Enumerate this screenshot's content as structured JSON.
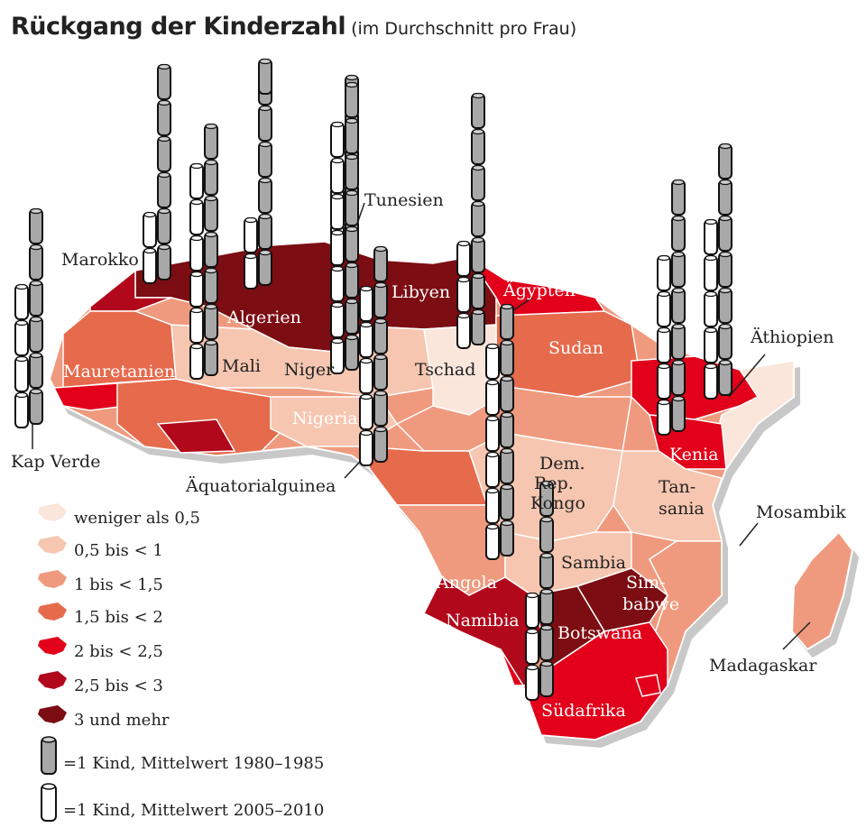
{
  "title": "Rückgang der Kinderzahl",
  "subtitle": "(im Durchschnitt pro Frau)",
  "colors": {
    "background": "#ffffff",
    "sea_shadow": "#c8c8c8",
    "border": "#ffffff",
    "label_dark": "#222222",
    "label_light": "#ffffff",
    "cylinder_old": "#a8a8a8",
    "cylinder_new": "#ffffff",
    "cylinder_outline": "#111111"
  },
  "legend": {
    "categories": [
      {
        "label": "weniger als 0,5",
        "color": "#fbe6dc"
      },
      {
        "label": "0,5 bis < 1",
        "color": "#f6c6b0"
      },
      {
        "label": "1 bis < 1,5",
        "color": "#ef9a7e"
      },
      {
        "label": "1,5 bis < 2",
        "color": "#e66a4c"
      },
      {
        "label": "2 bis < 2,5",
        "color": "#e2001a"
      },
      {
        "label": "2,5 bis < 3",
        "color": "#b2081c"
      },
      {
        "label": "3 und mehr",
        "color": "#7c0d13"
      }
    ],
    "symbols": [
      {
        "label": "=1 Kind, Mittelwert 1980–1985",
        "icon": "grey-cylinder-icon"
      },
      {
        "label": "=1 Kind, Mittelwert 2005–2010",
        "icon": "white-cylinder-icon"
      }
    ]
  },
  "countries": [
    {
      "name": "Marokko",
      "label_color": "dark",
      "old_children": 6,
      "new_children": 2
    },
    {
      "name": "Algerien",
      "label_color": "light",
      "old_children": 7,
      "new_children": 2
    },
    {
      "name": "Tunesien",
      "label_color": "dark",
      "old_children": 5,
      "new_children": 2
    },
    {
      "name": "Libyen",
      "label_color": "light",
      "old_children": 7,
      "new_children": 3
    },
    {
      "name": "Ägypten",
      "label_color": "light",
      "old_children": 5,
      "new_children": 3
    },
    {
      "name": "Mauretanien",
      "label_color": "light",
      "old_children": 6,
      "new_children": 4
    },
    {
      "name": "Mali",
      "label_color": "dark",
      "old_children": 7,
      "new_children": 6
    },
    {
      "name": "Niger",
      "label_color": "dark",
      "old_children": 8,
      "new_children": 7
    },
    {
      "name": "Tschad",
      "label_color": "dark",
      "old_children": 7,
      "new_children": 6
    },
    {
      "name": "Sudan",
      "label_color": "light",
      "old_children": 6,
      "new_children": 4
    },
    {
      "name": "Äthiopien",
      "label_color": "dark",
      "old_children": 7,
      "new_children": 5
    },
    {
      "name": "Nigeria",
      "label_color": "light",
      "old_children": 7,
      "new_children": 5
    },
    {
      "name": "Kap Verde",
      "label_color": "dark",
      "old_children": 6,
      "new_children": 3
    },
    {
      "name": "Äquatorialguinea",
      "label_color": "dark",
      "old_children": 6,
      "new_children": 5
    },
    {
      "name": "Dem. Rep. Kongo",
      "label_color": "dark",
      "old_children": 7,
      "new_children": 6
    },
    {
      "name": "Kenia",
      "label_color": "light",
      "old_children": 7,
      "new_children": 5
    },
    {
      "name": "Tansania",
      "label_color": "dark",
      "old_children": 7,
      "new_children": 6
    },
    {
      "name": "Mosambik",
      "label_color": "dark",
      "old_children": 6,
      "new_children": 5
    },
    {
      "name": "Angola",
      "label_color": "light",
      "old_children": 7,
      "new_children": 6
    },
    {
      "name": "Sambia",
      "label_color": "dark",
      "old_children": 7,
      "new_children": 6
    },
    {
      "name": "Simbabwe",
      "label_color": "light",
      "old_children": 6,
      "new_children": 3
    },
    {
      "name": "Namibia",
      "label_color": "light",
      "old_children": 6,
      "new_children": 3
    },
    {
      "name": "Botswana",
      "label_color": "light",
      "old_children": 6,
      "new_children": 3
    },
    {
      "name": "Madagaskar",
      "label_color": "dark",
      "old_children": 6,
      "new_children": 5
    },
    {
      "name": "Südafrika",
      "label_color": "light",
      "old_children": 5,
      "new_children": 3
    }
  ]
}
